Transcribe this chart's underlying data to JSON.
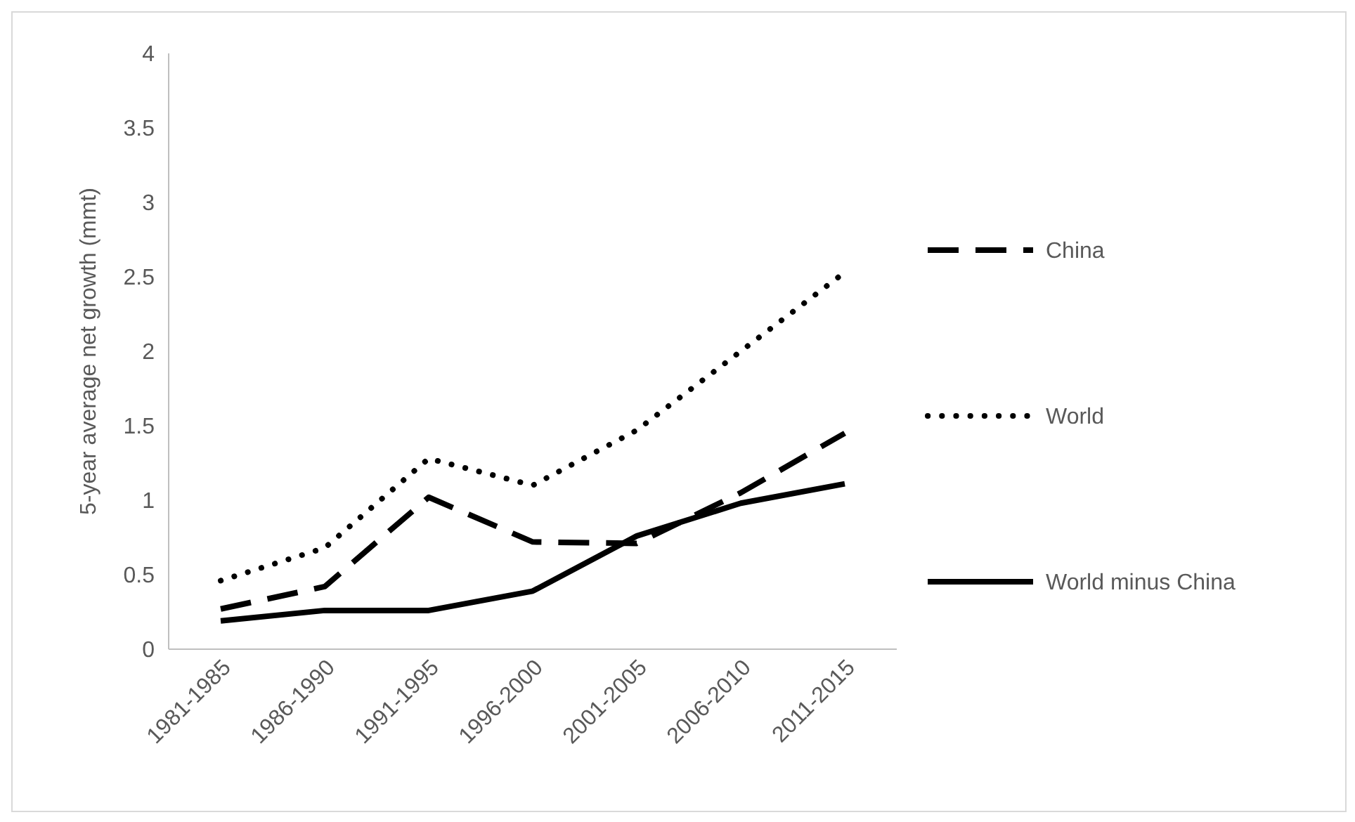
{
  "chart_data": {
    "type": "line",
    "ylabel": "5-year average net growth (mmt)",
    "categories": [
      "1981-1985",
      "1986-1990",
      "1991-1995",
      "1996-2000",
      "2001-2005",
      "2006-2010",
      "2011-2015"
    ],
    "series": [
      {
        "name": "China",
        "color": "#000000",
        "line_style": "dashed",
        "values": [
          0.27,
          0.42,
          1.02,
          0.72,
          0.71,
          1.05,
          1.45
        ]
      },
      {
        "name": "World",
        "color": "#000000",
        "line_style": "dotted",
        "values": [
          0.46,
          0.68,
          1.28,
          1.1,
          1.47,
          2.0,
          2.53
        ]
      },
      {
        "name": "World minus China",
        "color": "#000000",
        "line_style": "solid",
        "values": [
          0.19,
          0.26,
          0.26,
          0.39,
          0.76,
          0.98,
          1.11
        ]
      }
    ],
    "ylim": [
      0,
      4
    ],
    "yticks": [
      0,
      0.5,
      1,
      1.5,
      2,
      2.5,
      3,
      3.5,
      4
    ],
    "legend": "right",
    "grid": false
  }
}
